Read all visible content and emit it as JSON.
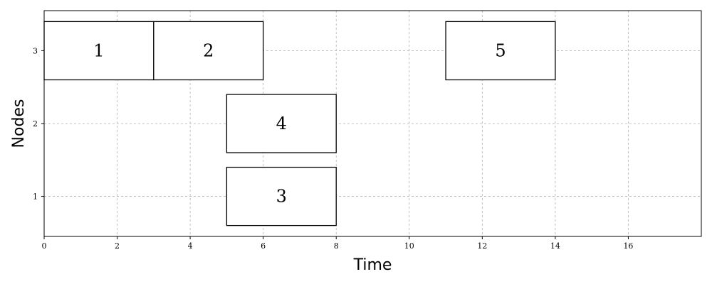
{
  "chart_data": {
    "type": "gantt",
    "xlabel": "Time",
    "ylabel": "Nodes",
    "xlim": [
      0,
      18
    ],
    "ylim": [
      0.45,
      3.55
    ],
    "x_ticks": [
      0,
      2,
      4,
      6,
      8,
      10,
      12,
      14,
      16
    ],
    "y_ticks": [
      1,
      2,
      3
    ],
    "grid": true,
    "tasks": [
      {
        "label": "1",
        "node": 3,
        "start": 0,
        "end": 3
      },
      {
        "label": "2",
        "node": 3,
        "start": 3,
        "end": 6
      },
      {
        "label": "5",
        "node": 3,
        "start": 11,
        "end": 14
      },
      {
        "label": "4",
        "node": 2,
        "start": 5,
        "end": 8
      },
      {
        "label": "3",
        "node": 1,
        "start": 5,
        "end": 8
      }
    ]
  }
}
